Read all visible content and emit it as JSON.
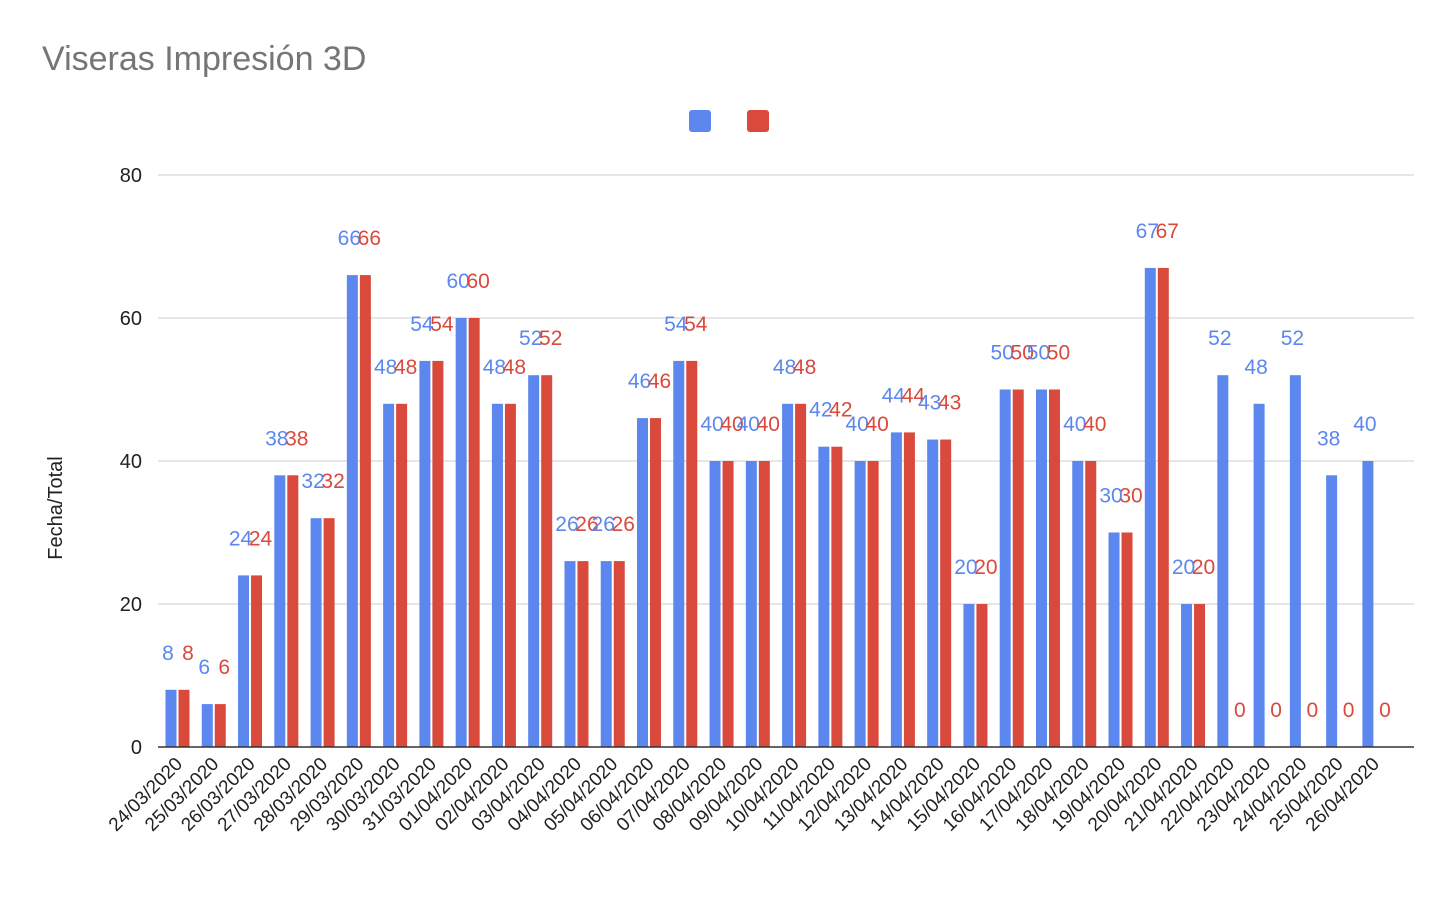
{
  "chart_data": {
    "type": "bar",
    "title": "Viseras Impresión 3D",
    "xlabel": "",
    "ylabel": "Fecha/Total",
    "ylim": [
      0,
      80
    ],
    "yticks": [
      0,
      20,
      40,
      60,
      80
    ],
    "grid": true,
    "legend": "top-center",
    "categories": [
      "24/03/2020",
      "25/03/2020",
      "26/03/2020",
      "27/03/2020",
      "28/03/2020",
      "29/03/2020",
      "30/03/2020",
      "31/03/2020",
      "01/04/2020",
      "02/04/2020",
      "03/04/2020",
      "04/04/2020",
      "05/04/2020",
      "06/04/2020",
      "07/04/2020",
      "08/04/2020",
      "09/04/2020",
      "10/04/2020",
      "11/04/2020",
      "12/04/2020",
      "13/04/2020",
      "14/04/2020",
      "15/04/2020",
      "16/04/2020",
      "17/04/2020",
      "18/04/2020",
      "19/04/2020",
      "20/04/2020",
      "21/04/2020",
      "22/04/2020",
      "23/04/2020",
      "24/04/2020",
      "25/04/2020",
      "26/04/2020"
    ],
    "series": [
      {
        "name": "",
        "color": "#5b87ee",
        "values": [
          8,
          6,
          24,
          38,
          32,
          66,
          48,
          54,
          60,
          48,
          52,
          26,
          26,
          46,
          54,
          40,
          40,
          48,
          42,
          40,
          44,
          43,
          20,
          50,
          50,
          40,
          30,
          67,
          20,
          52,
          48,
          52,
          38,
          40
        ]
      },
      {
        "name": "",
        "color": "#d9493c",
        "values": [
          8,
          6,
          24,
          38,
          32,
          66,
          48,
          54,
          60,
          48,
          52,
          26,
          26,
          46,
          54,
          40,
          40,
          48,
          42,
          40,
          44,
          43,
          20,
          50,
          50,
          40,
          30,
          67,
          20,
          0,
          0,
          0,
          0,
          0
        ]
      }
    ]
  }
}
